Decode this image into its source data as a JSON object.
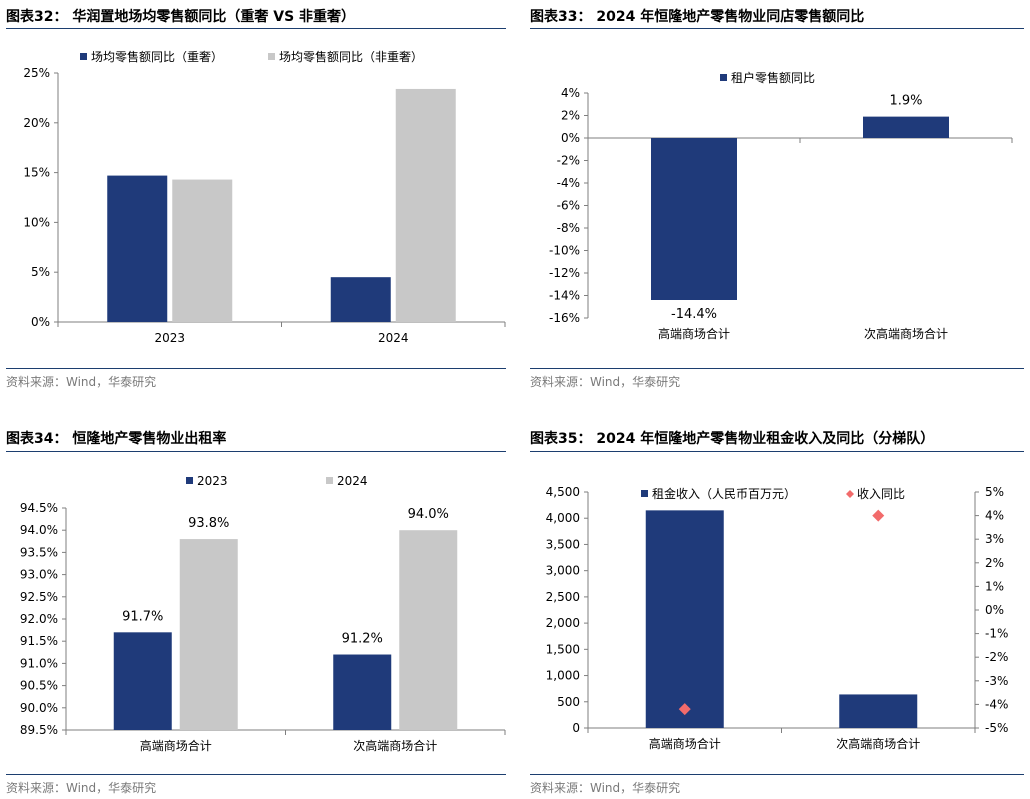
{
  "colors": {
    "navy": "#1f3a7a",
    "gray": "#c8c8c8",
    "diamond": "#f26b6b",
    "rule": "#1c3e6f",
    "source": "#7a7a7a"
  },
  "source_text": "资料来源：Wind，华泰研究",
  "charts": [
    {
      "title": "图表32：  华润置地场均零售额同比（重奢 VS 非重奢）",
      "chart_data": {
        "type": "bar",
        "categories": [
          "2023",
          "2024"
        ],
        "series": [
          {
            "name": "场均零售额同比（重奢）",
            "color": "#1f3a7a",
            "values": [
              14.7,
              4.5
            ]
          },
          {
            "name": "场均零售额同比（非重奢）",
            "color": "#c8c8c8",
            "values": [
              14.3,
              23.4
            ]
          }
        ],
        "ylim": [
          0,
          25
        ],
        "yticks": [
          "0%",
          "5%",
          "10%",
          "15%",
          "20%",
          "25%"
        ],
        "legend": "top-left"
      }
    },
    {
      "title": "图表33：  2024 年恒隆地产零售物业同店零售额同比",
      "chart_data": {
        "type": "bar",
        "categories": [
          "高端商场合计",
          "次高端商场合计"
        ],
        "series": [
          {
            "name": "租户零售额同比",
            "color": "#1f3a7a",
            "values": [
              -14.4,
              1.9
            ],
            "labels": [
              "-14.4%",
              "1.9%"
            ]
          }
        ],
        "ylim": [
          -16,
          4
        ],
        "yticks": [
          "-16%",
          "-14%",
          "-12%",
          "-10%",
          "-8%",
          "-6%",
          "-4%",
          "-2%",
          "0%",
          "2%",
          "4%"
        ],
        "legend": "top-center"
      }
    },
    {
      "title": "图表34：  恒隆地产零售物业出租率",
      "chart_data": {
        "type": "bar",
        "categories": [
          "高端商场合计",
          "次高端商场合计"
        ],
        "series": [
          {
            "name": "2023",
            "color": "#1f3a7a",
            "values": [
              91.7,
              91.2
            ],
            "labels": [
              "91.7%",
              "91.2%"
            ]
          },
          {
            "name": "2024",
            "color": "#c8c8c8",
            "values": [
              93.8,
              94.0
            ],
            "labels": [
              "93.8%",
              "94.0%"
            ]
          }
        ],
        "ylim": [
          89.5,
          94.5
        ],
        "yticks": [
          "89.5%",
          "90.0%",
          "90.5%",
          "91.0%",
          "91.5%",
          "92.0%",
          "92.5%",
          "93.0%",
          "93.5%",
          "94.0%",
          "94.5%"
        ],
        "legend": "top-center"
      }
    },
    {
      "title": "图表35：  2024 年恒隆地产零售物业租金收入及同比（分梯队）",
      "chart_data": {
        "type": "bar",
        "categories": [
          "高端商场合计",
          "次高端商场合计"
        ],
        "series": [
          {
            "name": "租金收入（人民币百万元）",
            "color": "#1f3a7a",
            "values": [
              4150,
              640
            ],
            "axis": "left"
          },
          {
            "name": "收入同比",
            "color": "#f26b6b",
            "values": [
              -4.2,
              4.0
            ],
            "axis": "right",
            "marker": "diamond"
          }
        ],
        "ylim": [
          0,
          4500
        ],
        "yticks": [
          "0",
          "500",
          "1,000",
          "1,500",
          "2,000",
          "2,500",
          "3,000",
          "3,500",
          "4,000",
          "4,500"
        ],
        "y2lim": [
          -5,
          5
        ],
        "y2ticks": [
          "-5%",
          "-4%",
          "-3%",
          "-2%",
          "-1%",
          "0%",
          "1%",
          "2%",
          "3%",
          "4%",
          "5%"
        ],
        "legend": "top"
      }
    }
  ]
}
